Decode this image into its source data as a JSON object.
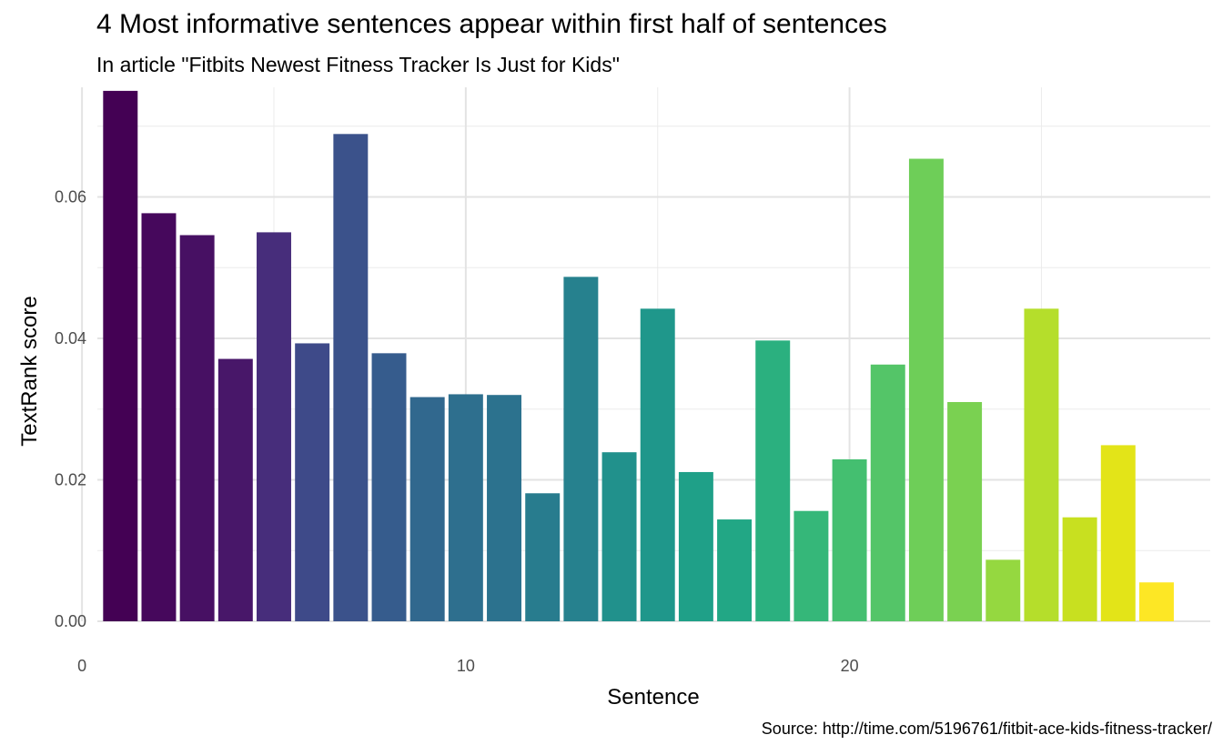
{
  "chart_data": {
    "type": "bar",
    "title": "4 Most informative sentences appear within first half of sentences",
    "subtitle": "In article \"Fitbits Newest Fitness Tracker Is Just for Kids\"",
    "caption": "Source: http://time.com/5196761/fitbit-ace-kids-fitness-tracker/",
    "xlabel": "Sentence",
    "ylabel": "TextRank score",
    "x": [
      1,
      2,
      3,
      4,
      5,
      6,
      7,
      8,
      9,
      10,
      11,
      12,
      13,
      14,
      15,
      16,
      17,
      18,
      19,
      20,
      21,
      22,
      23,
      24,
      25,
      26,
      27,
      28
    ],
    "values": [
      0.075,
      0.0577,
      0.0546,
      0.0371,
      0.055,
      0.0393,
      0.0689,
      0.0379,
      0.0317,
      0.0321,
      0.032,
      0.0181,
      0.0487,
      0.0239,
      0.0442,
      0.0211,
      0.0144,
      0.0397,
      0.0156,
      0.0229,
      0.0363,
      0.0654,
      0.031,
      0.0087,
      0.0442,
      0.0147,
      0.0249,
      0.0055
    ],
    "colors": [
      "#440154",
      "#46085C",
      "#471063",
      "#481769",
      "#472D7B",
      "#3E4A89",
      "#3B528B",
      "#365C8D",
      "#31688E",
      "#2E6F8E",
      "#2C728E",
      "#287C8E",
      "#26818E",
      "#21918C",
      "#1F978B",
      "#1FA088",
      "#22A785",
      "#2BB07F",
      "#35B779",
      "#44BF70",
      "#54C568",
      "#6ECE58",
      "#7AD151",
      "#95D840",
      "#B5DE2B",
      "#C8E020",
      "#E3E418",
      "#FDE725"
    ],
    "xlim": [
      0.4,
      29.4
    ],
    "ylim": [
      0,
      0.0755
    ],
    "x_ticks": [
      0,
      10,
      20
    ],
    "y_ticks": [
      0.0,
      0.02,
      0.04,
      0.06
    ],
    "y_tick_labels": [
      "0.00",
      "0.02",
      "0.04",
      "0.06"
    ],
    "grid": true,
    "legend": "none"
  }
}
